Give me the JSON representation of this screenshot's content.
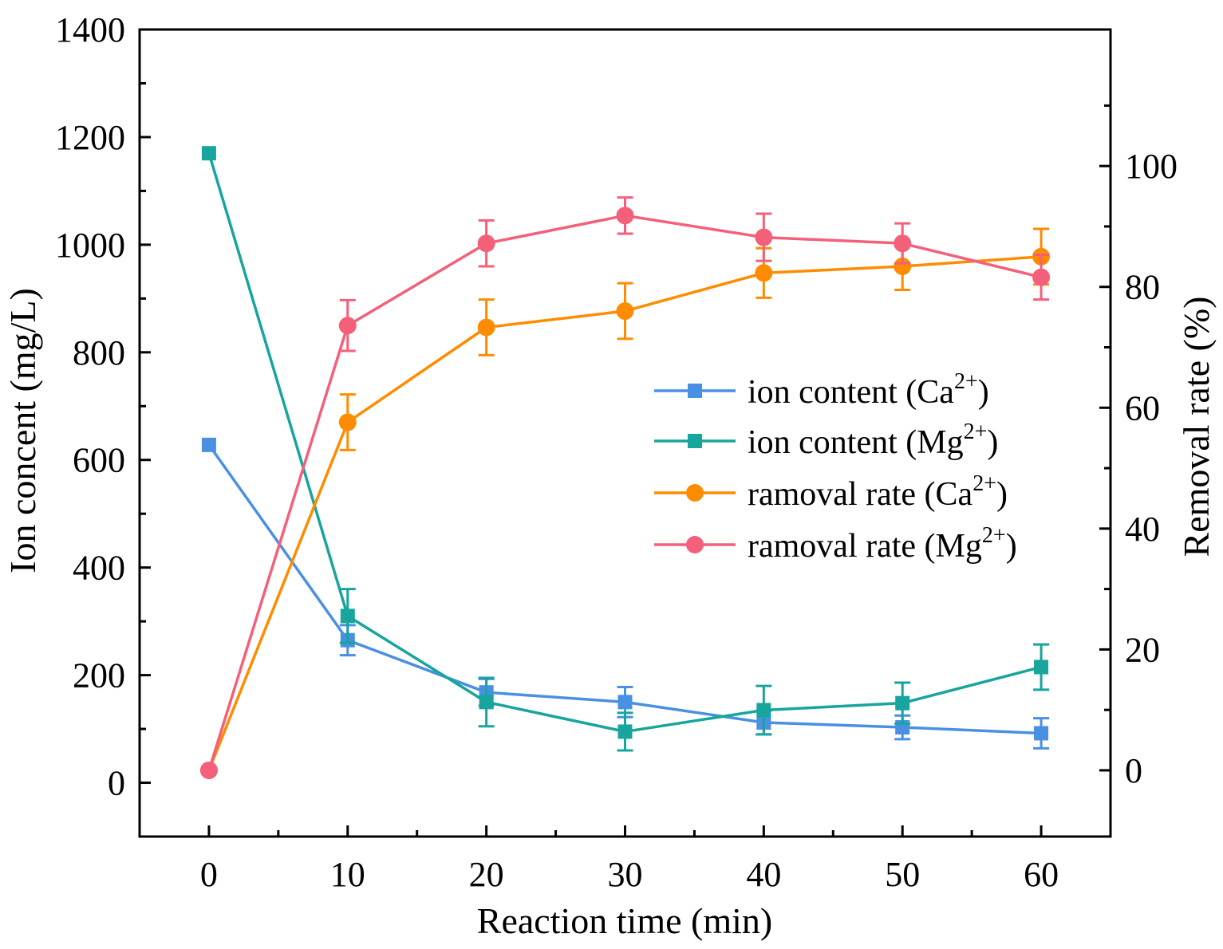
{
  "chart_data": {
    "type": "line",
    "x": [
      0,
      10,
      20,
      30,
      40,
      50,
      60
    ],
    "xlabel": "Reaction time (min)",
    "ylabel_left": "Ion concent (mg/L)",
    "ylabel_right": "Removal rate (%)",
    "xlim": [
      -5,
      65
    ],
    "ylim_left": [
      -100,
      1400
    ],
    "ylim_right": [
      -10.96,
      122.59
    ],
    "x_ticks": [
      0,
      10,
      20,
      30,
      40,
      50,
      60
    ],
    "y_left_ticks": [
      0,
      200,
      400,
      600,
      800,
      1000,
      1200,
      1400
    ],
    "y_right_ticks": [
      0,
      20,
      40,
      60,
      80,
      100
    ],
    "legend_position": "center-right",
    "series": [
      {
        "key": "ca-content",
        "name": "ion content (Ca",
        "sup": "2+",
        "close": ")",
        "axis": "left",
        "marker": "square",
        "color": "#4a90e2",
        "values": [
          628,
          265,
          168,
          150,
          112,
          103,
          92
        ],
        "errors": [
          0,
          28,
          25,
          28,
          22,
          22,
          28
        ]
      },
      {
        "key": "mg-content",
        "name": "ion content (Mg",
        "sup": "2+",
        "close": ")",
        "axis": "left",
        "marker": "square",
        "color": "#17a59d",
        "values": [
          1170,
          310,
          150,
          95,
          135,
          148,
          215
        ],
        "errors": [
          0,
          50,
          45,
          35,
          45,
          38,
          42
        ]
      },
      {
        "key": "ca-rate",
        "name": "ramoval rate (Ca",
        "sup": "2+",
        "close": ")",
        "axis": "right",
        "marker": "circle",
        "color": "#ff8c00",
        "values": [
          0,
          57.6,
          73.3,
          76.0,
          82.3,
          83.4,
          85.0
        ],
        "errors": [
          0,
          4.6,
          4.6,
          4.6,
          4.1,
          3.9,
          4.6
        ]
      },
      {
        "key": "mg-rate",
        "name": "ramoval rate (Mg",
        "sup": "2+",
        "close": ")",
        "axis": "right",
        "marker": "circle",
        "color": "#f4607a",
        "values": [
          0,
          73.6,
          87.2,
          91.8,
          88.2,
          87.2,
          81.6
        ],
        "errors": [
          0,
          4.2,
          3.8,
          3.0,
          3.9,
          3.3,
          3.7
        ]
      }
    ]
  }
}
